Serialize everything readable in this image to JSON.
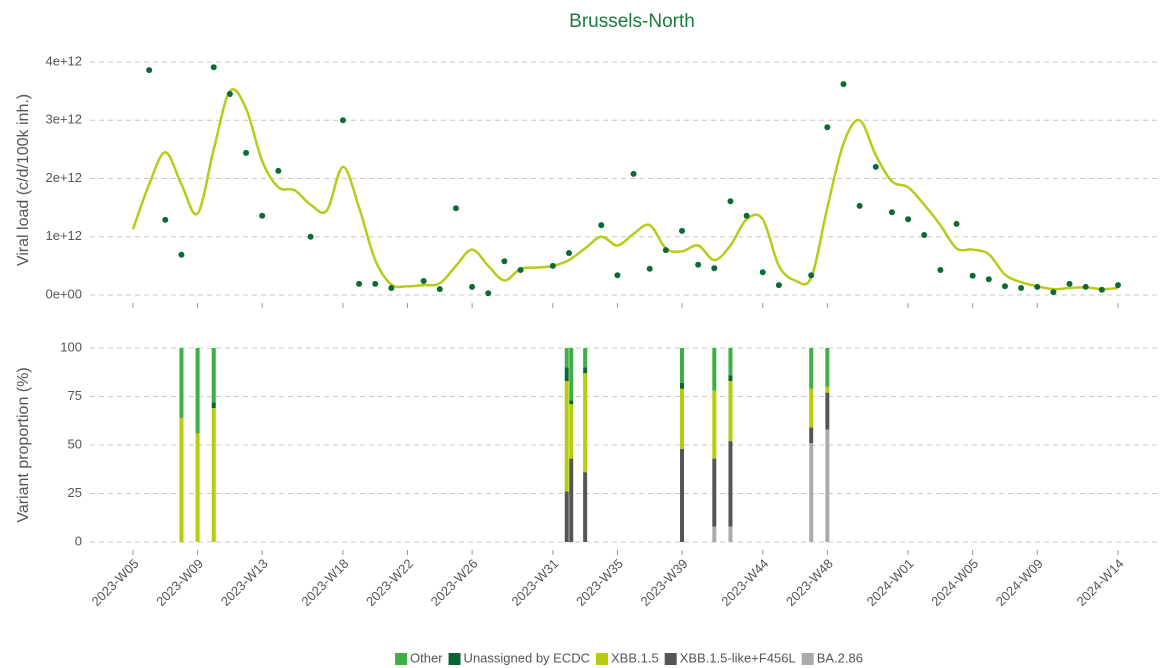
{
  "chart_data": [
    {
      "type": "line",
      "title": "Brussels-North",
      "y_label": "Viral load (c/d/100k inh.)",
      "ylim": [
        0,
        4000000000000.0
      ],
      "yticks": [
        {
          "value": 0,
          "label": "0e+00"
        },
        {
          "value": 1000000000000.0,
          "label": "1e+12"
        },
        {
          "value": 2000000000000.0,
          "label": "2e+12"
        },
        {
          "value": 3000000000000.0,
          "label": "3e+12"
        },
        {
          "value": 4000000000000.0,
          "label": "4e+12"
        }
      ],
      "grid": true,
      "series": [
        {
          "type": "scatter",
          "color": "#0b6b35",
          "x": [
            "2023-W06",
            "2023-W07",
            "2023-W08",
            "2023-W10",
            "2023-W11",
            "2023-W12",
            "2023-W13",
            "2023-W14",
            "2023-W16",
            "2023-W18",
            "2023-W19",
            "2023-W20",
            "2023-W21",
            "2023-W23",
            "2023-W24",
            "2023-W25",
            "2023-W26",
            "2023-W27",
            "2023-W28",
            "2023-W29",
            "2023-W31",
            "2023-W32",
            "2023-W34",
            "2023-W35",
            "2023-W36",
            "2023-W37",
            "2023-W38",
            "2023-W39",
            "2023-W40",
            "2023-W41",
            "2023-W42",
            "2023-W43",
            "2023-W44",
            "2023-W45",
            "2023-W47",
            "2023-W48",
            "2023-W49",
            "2023-W50",
            "2023-W51",
            "2023-W52",
            "2024-W01",
            "2024-W02",
            "2024-W03",
            "2024-W04",
            "2024-W05",
            "2024-W06",
            "2024-W07",
            "2024-W08",
            "2024-W09",
            "2024-W10",
            "2024-W11",
            "2024-W12",
            "2024-W13",
            "2024-W14"
          ],
          "values": [
            3860000000000.0,
            1290000000000.0,
            690000000000.0,
            3910000000000.0,
            3450000000000.0,
            2440000000000.0,
            1360000000000.0,
            2130000000000.0,
            1000000000000.0,
            3000000000000.0,
            190000000000.0,
            190000000000.0,
            120000000000.0,
            240000000000.0,
            100000000000.0,
            1490000000000.0,
            140000000000.0,
            30000000000.0,
            580000000000.0,
            430000000000.0,
            500000000000.0,
            720000000000.0,
            1200000000000.0,
            340000000000.0,
            2080000000000.0,
            450000000000.0,
            770000000000.0,
            1100000000000.0,
            520000000000.0,
            460000000000.0,
            1610000000000.0,
            1360000000000.0,
            390000000000.0,
            170000000000.0,
            340000000000.0,
            2880000000000.0,
            3620000000000.0,
            1530000000000.0,
            2200000000000.0,
            1420000000000.0,
            1300000000000.0,
            1030000000000.0,
            430000000000.0,
            1220000000000.0,
            330000000000.0,
            270000000000.0,
            150000000000.0,
            120000000000.0,
            140000000000.0,
            50000000000.0,
            190000000000.0,
            140000000000.0,
            90000000000.0,
            170000000000.0
          ]
        },
        {
          "type": "smooth",
          "color": "#b7cc18",
          "x": [
            "2023-W05",
            "2023-W06",
            "2023-W07",
            "2023-W08",
            "2023-W09",
            "2023-W10",
            "2023-W11",
            "2023-W12",
            "2023-W13",
            "2023-W14",
            "2023-W15",
            "2023-W16",
            "2023-W17",
            "2023-W18",
            "2023-W19",
            "2023-W20",
            "2023-W21",
            "2023-W22",
            "2023-W23",
            "2023-W24",
            "2023-W25",
            "2023-W26",
            "2023-W27",
            "2023-W28",
            "2023-W29",
            "2023-W30",
            "2023-W31",
            "2023-W32",
            "2023-W33",
            "2023-W34",
            "2023-W35",
            "2023-W36",
            "2023-W37",
            "2023-W38",
            "2023-W39",
            "2023-W40",
            "2023-W41",
            "2023-W42",
            "2023-W43",
            "2023-W44",
            "2023-W45",
            "2023-W46",
            "2023-W47",
            "2023-W48",
            "2023-W49",
            "2023-W50",
            "2023-W51",
            "2023-W52",
            "2024-W01",
            "2024-W02",
            "2024-W03",
            "2024-W04",
            "2024-W05",
            "2024-W06",
            "2024-W07",
            "2024-W08",
            "2024-W09",
            "2024-W10",
            "2024-W11",
            "2024-W12",
            "2024-W13",
            "2024-W14"
          ],
          "values": [
            1130000000000.0,
            1900000000000.0,
            2450000000000.0,
            1900000000000.0,
            1400000000000.0,
            2500000000000.0,
            3500000000000.0,
            3200000000000.0,
            2300000000000.0,
            1850000000000.0,
            1800000000000.0,
            1550000000000.0,
            1450000000000.0,
            2200000000000.0,
            1500000000000.0,
            600000000000.0,
            180000000000.0,
            150000000000.0,
            170000000000.0,
            200000000000.0,
            500000000000.0,
            780000000000.0,
            500000000000.0,
            250000000000.0,
            450000000000.0,
            470000000000.0,
            500000000000.0,
            600000000000.0,
            800000000000.0,
            1000000000000.0,
            850000000000.0,
            1050000000000.0,
            1200000000000.0,
            800000000000.0,
            750000000000.0,
            850000000000.0,
            600000000000.0,
            850000000000.0,
            1300000000000.0,
            1300000000000.0,
            500000000000.0,
            250000000000.0,
            300000000000.0,
            1500000000000.0,
            2600000000000.0,
            3000000000000.0,
            2400000000000.0,
            1950000000000.0,
            1850000000000.0,
            1550000000000.0,
            1200000000000.0,
            800000000000.0,
            780000000000.0,
            700000000000.0,
            350000000000.0,
            220000000000.0,
            150000000000.0,
            100000000000.0,
            120000000000.0,
            130000000000.0,
            100000000000.0,
            120000000000.0
          ]
        }
      ]
    },
    {
      "type": "stacked-bar",
      "y_label": "Variant proportion (%)",
      "ylim": [
        0,
        100
      ],
      "yticks": [
        0,
        25,
        50,
        75,
        100
      ],
      "grid": true,
      "xticks": [
        "2023-W05",
        "2023-W09",
        "2023-W13",
        "2023-W18",
        "2023-W22",
        "2023-W26",
        "2023-W31",
        "2023-W35",
        "2023-W39",
        "2023-W44",
        "2023-W48",
        "2024-W01",
        "2024-W05",
        "2024-W09",
        "2024-W14"
      ],
      "x": [
        "2023-W08",
        "2023-W09",
        "2023-W10",
        "2023-W32",
        "2023-W32",
        "2023-W33",
        "2023-W39",
        "2023-W41",
        "2023-W42",
        "2023-W47",
        "2023-W48"
      ],
      "series": [
        {
          "name": "Other",
          "color": "#3cb043",
          "values": [
            36,
            44,
            28,
            10,
            27,
            10,
            18,
            22,
            14,
            21,
            20
          ]
        },
        {
          "name": "Unassigned by ECDC",
          "color": "#0a6630",
          "values": [
            0,
            0,
            3,
            7,
            2,
            3,
            3,
            0,
            3,
            0,
            0
          ]
        },
        {
          "name": "XBB.1.5",
          "color": "#b7cc0f",
          "values": [
            64,
            56,
            69,
            57,
            28,
            51,
            31,
            35,
            31,
            20,
            3
          ]
        },
        {
          "name": "XBB.1.5-like+F456L",
          "color": "#555555",
          "values": [
            0,
            0,
            0,
            26,
            43,
            36,
            48,
            35,
            44,
            8,
            19
          ]
        },
        {
          "name": "BA.2.86",
          "color": "#aaaaaa",
          "values": [
            0,
            0,
            0,
            0,
            0,
            0,
            0,
            8,
            8,
            51,
            58
          ]
        }
      ]
    }
  ]
}
